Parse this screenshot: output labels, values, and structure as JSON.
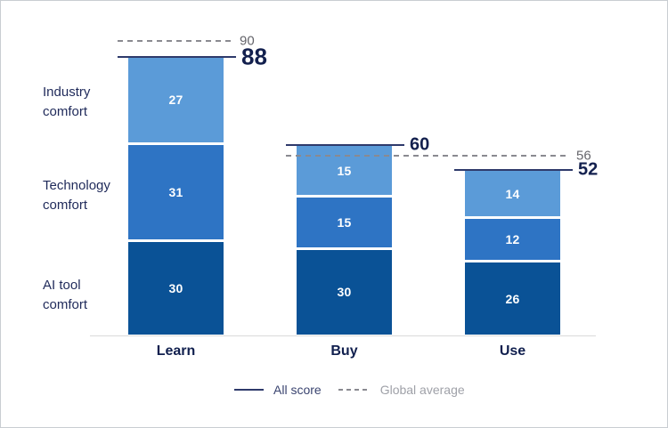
{
  "chart_data": {
    "type": "bar",
    "subtype": "stacked-bar-with-reference-lines",
    "title": "",
    "categories": [
      "Learn",
      "Buy",
      "Use"
    ],
    "series": [
      {
        "name": "AI tool comfort",
        "color": "#0a5296",
        "values": [
          30,
          30,
          26
        ]
      },
      {
        "name": "Technology comfort",
        "color": "#2e74c4",
        "values": [
          31,
          15,
          12
        ]
      },
      {
        "name": "Industry comfort",
        "color": "#5b9bd8",
        "values": [
          27,
          15,
          14
        ]
      }
    ],
    "totals": [
      88,
      60,
      52
    ],
    "global_average_lines": [
      {
        "value": 90,
        "label": "90",
        "span_categories": [
          "Learn"
        ]
      },
      {
        "value": 56,
        "label": "56",
        "span_categories": [
          "Buy",
          "Use"
        ]
      }
    ],
    "row_labels": [
      "Industry comfort",
      "Technology comfort",
      "AI tool comfort"
    ],
    "ylim": [
      0,
      100
    ],
    "grid": "off",
    "legend_position": "bottom",
    "legend": [
      {
        "label": "All score",
        "style": "solid",
        "color": "#2e3a6b"
      },
      {
        "label": "Global average",
        "style": "dashed",
        "color": "#8a8a90"
      }
    ]
  },
  "colors": {
    "bar_dark": "#0a5296",
    "bar_mid": "#2e74c4",
    "bar_light": "#5b9bd8",
    "navy_text": "#13204e",
    "gray_text": "#65656b",
    "axis_line": "#dadada",
    "score_line": "#2e3a6b",
    "dashed_line": "#8a8a90"
  }
}
